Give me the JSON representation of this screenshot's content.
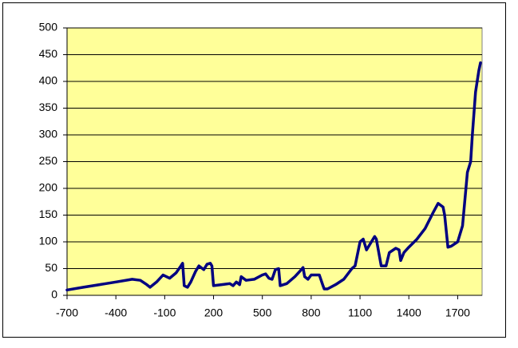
{
  "chart_data": {
    "type": "line",
    "x": [
      -700,
      -600,
      -500,
      -400,
      -300,
      -250,
      -210,
      -190,
      -150,
      -110,
      -90,
      -70,
      -30,
      0,
      10,
      20,
      40,
      60,
      90,
      110,
      140,
      160,
      180,
      190,
      200,
      250,
      300,
      320,
      340,
      360,
      370,
      400,
      450,
      500,
      520,
      540,
      560,
      580,
      600,
      610,
      650,
      700,
      730,
      750,
      760,
      780,
      800,
      850,
      870,
      880,
      900,
      950,
      1000,
      1050,
      1070,
      1100,
      1120,
      1140,
      1170,
      1190,
      1200,
      1230,
      1260,
      1280,
      1320,
      1340,
      1350,
      1370,
      1400,
      1450,
      1500,
      1550,
      1580,
      1610,
      1620,
      1640,
      1660,
      1700,
      1730,
      1760,
      1780,
      1790,
      1810,
      1830,
      1840
    ],
    "values": [
      10,
      15,
      20,
      25,
      30,
      28,
      20,
      15,
      25,
      38,
      35,
      32,
      42,
      55,
      60,
      18,
      15,
      25,
      45,
      55,
      48,
      58,
      60,
      55,
      18,
      20,
      22,
      18,
      25,
      20,
      35,
      28,
      30,
      38,
      40,
      32,
      30,
      48,
      50,
      18,
      22,
      35,
      45,
      52,
      35,
      30,
      38,
      38,
      20,
      12,
      12,
      20,
      30,
      50,
      55,
      100,
      105,
      85,
      100,
      110,
      105,
      55,
      55,
      80,
      88,
      85,
      65,
      80,
      90,
      105,
      125,
      155,
      172,
      165,
      150,
      90,
      92,
      100,
      130,
      230,
      250,
      300,
      380,
      420,
      435
    ],
    "color": "#000080",
    "xlim": [
      -700,
      1850
    ],
    "xticks": [
      -700,
      -400,
      -100,
      200,
      500,
      800,
      1100,
      1400,
      1700
    ],
    "ylim": [
      0,
      500
    ],
    "yticks": [
      0,
      50,
      100,
      150,
      200,
      250,
      300,
      350,
      400,
      450,
      500
    ],
    "grid": true,
    "plot_background": "#ffff99"
  }
}
